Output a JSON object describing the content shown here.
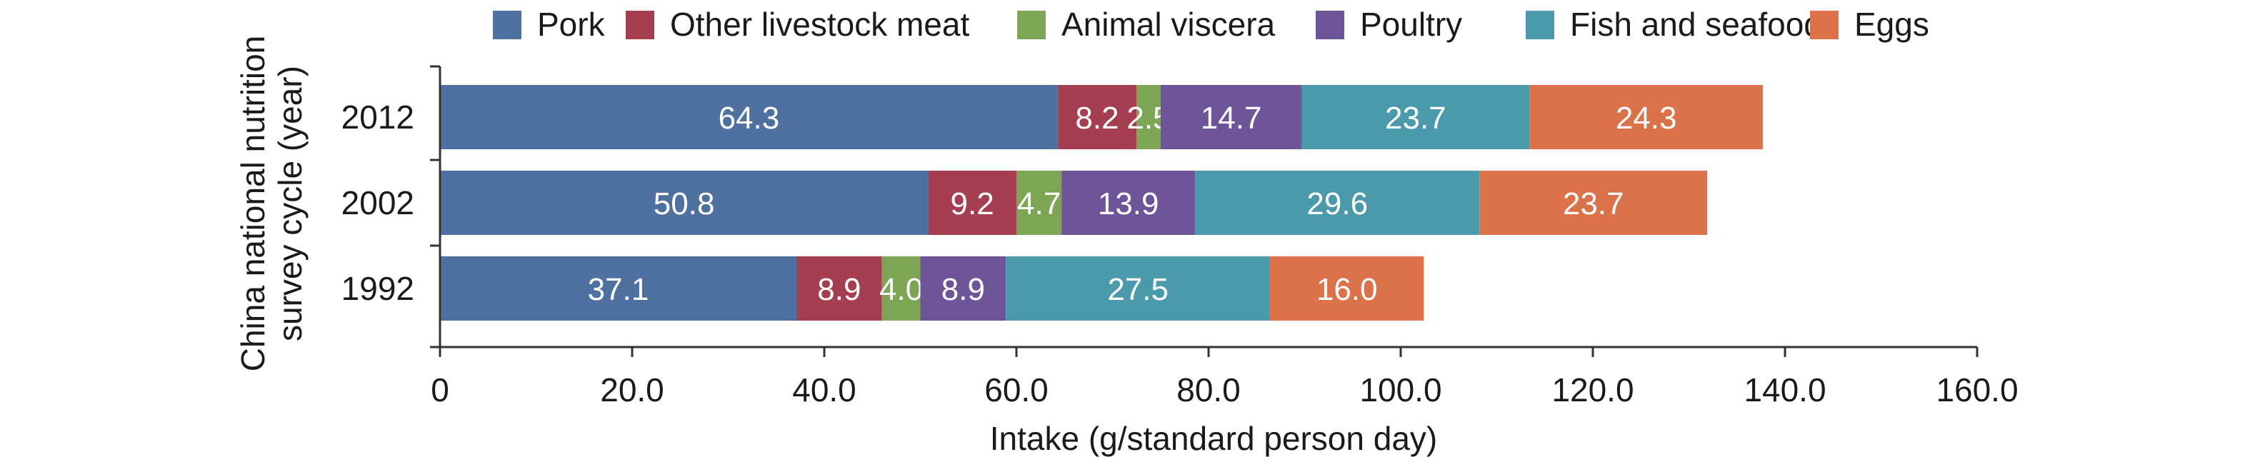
{
  "chart_data": {
    "type": "bar",
    "orientation": "horizontal",
    "stacked": true,
    "categories": [
      "2012",
      "2002",
      "1992"
    ],
    "series": [
      {
        "name": "Pork",
        "color": "#4E71A0",
        "values": [
          64.3,
          50.8,
          37.1
        ]
      },
      {
        "name": "Other livestock meat",
        "color": "#A63E52",
        "values": [
          8.2,
          9.2,
          8.9
        ]
      },
      {
        "name": "Animal viscera",
        "color": "#7CA554",
        "values": [
          2.5,
          4.7,
          4.0
        ]
      },
      {
        "name": "Poultry",
        "color": "#6E5498",
        "values": [
          14.7,
          13.9,
          8.9
        ]
      },
      {
        "name": "Fish and seafood",
        "color": "#4B9AAB",
        "values": [
          23.7,
          29.6,
          27.5
        ]
      },
      {
        "name": "Eggs",
        "color": "#DB7249",
        "values": [
          24.3,
          23.7,
          16.0
        ]
      }
    ],
    "data_labels": {
      "2012": [
        "64.3",
        "8.2",
        "2.5",
        "14.7",
        "23.7",
        "24.3"
      ],
      "2002": [
        "50.8",
        "9.2",
        "4.7",
        "13.9",
        "29.6",
        "23.7"
      ],
      "1992": [
        "37.1",
        "8.9",
        "4.0",
        "8.9",
        "27.5",
        "16.0"
      ]
    },
    "xlabel": "Intake (g/standard person day)",
    "ylabel_lines": [
      "China national nutrition",
      "survey cycle (year)"
    ],
    "xlim": [
      0,
      160
    ],
    "xticks": [
      0,
      20,
      40,
      60,
      80,
      100,
      120,
      140,
      160
    ],
    "xtick_labels": [
      "0",
      "20.0",
      "40.0",
      "60.0",
      "80.0",
      "100.0",
      "120.0",
      "140.0",
      "160.0"
    ],
    "grid": false,
    "legend_position": "top"
  }
}
